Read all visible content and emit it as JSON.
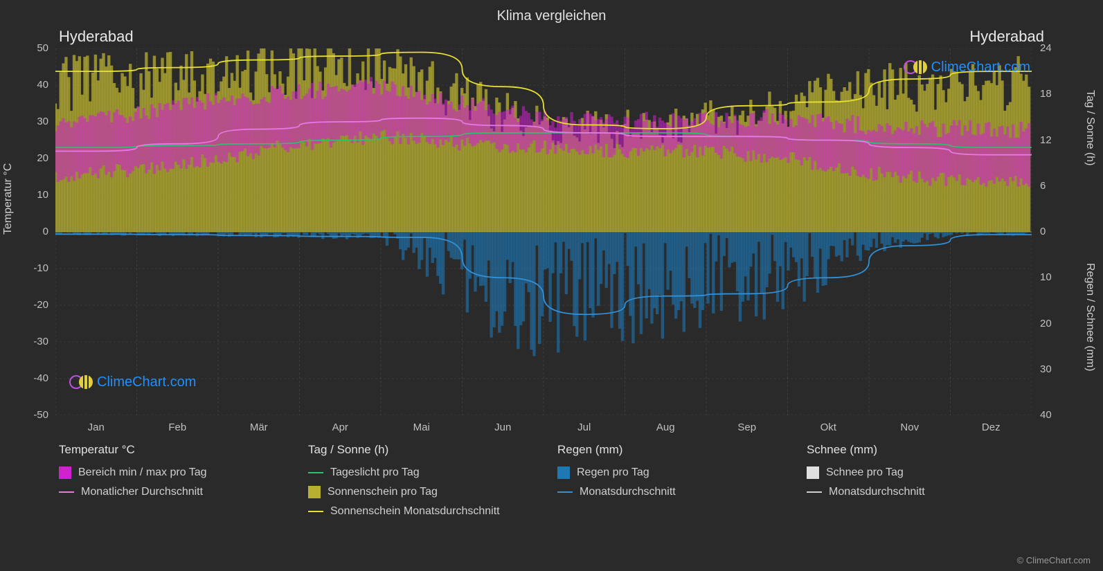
{
  "title": "Klima vergleichen",
  "location_left": "Hyderabad",
  "location_right": "Hyderabad",
  "axis_left_label": "Temperatur °C",
  "axis_right_label_top": "Tag / Sonne (h)",
  "axis_right_label_bottom": "Regen / Schnee (mm)",
  "copyright": "© ClimeChart.com",
  "watermark_text": "ClimeChart.com",
  "chart": {
    "type": "climate-multi-axis",
    "background_color": "#2a2a2a",
    "grid_color": "#707070",
    "grid_dash": "3,3",
    "font_family": "Arial",
    "months": [
      "Jan",
      "Feb",
      "Mär",
      "Apr",
      "Mai",
      "Jun",
      "Jul",
      "Aug",
      "Sep",
      "Okt",
      "Nov",
      "Dez"
    ],
    "y_left": {
      "min": -50,
      "max": 50,
      "step": 10,
      "label_fontsize": 15
    },
    "y_right_top": {
      "min": 0,
      "max": 24,
      "step": 6,
      "label_fontsize": 15
    },
    "y_right_bottom": {
      "min": 0,
      "max": 40,
      "step": 10,
      "label_fontsize": 15,
      "inverted": true
    },
    "colors": {
      "temp_range_fill": "#d020d0",
      "temp_avg_line": "#e878e8",
      "daylight_line": "#30c070",
      "sunshine_fill": "#b8b030",
      "sunshine_avg_line": "#e8e030",
      "rain_fill": "#1e78b4",
      "rain_avg_line": "#3090d8",
      "snow_fill": "#e0e0e0",
      "snow_avg_line": "#d0d0d0"
    },
    "series": {
      "temp_min_monthly": [
        15,
        17,
        20,
        24,
        26,
        24,
        23,
        22,
        22,
        20,
        16,
        14
      ],
      "temp_max_monthly": [
        29,
        32,
        36,
        38,
        40,
        35,
        31,
        30,
        31,
        31,
        29,
        28
      ],
      "temp_avg_monthly": [
        22,
        24,
        28,
        30,
        31,
        29,
        27,
        26,
        26,
        25,
        23,
        21
      ],
      "daylight_hours": [
        23,
        23.5,
        24,
        25,
        26,
        27,
        27,
        27,
        26,
        25,
        24,
        23
      ],
      "sunshine_fill_h": [
        21,
        21.5,
        22,
        23,
        23.5,
        19,
        15,
        14.5,
        16,
        18,
        20,
        21
      ],
      "sunshine_avg_h": [
        21,
        21.5,
        22.5,
        23,
        23.5,
        19,
        14,
        13.5,
        16.5,
        17,
        20,
        21
      ],
      "rain_fill_mm": [
        0.4,
        0.5,
        0.6,
        0.8,
        1.0,
        10,
        18,
        14,
        13,
        10,
        3,
        0.5
      ],
      "rain_avg_mm": [
        0.5,
        0.6,
        0.8,
        1.0,
        1.2,
        10,
        18,
        14,
        13.5,
        10,
        3,
        0.6
      ],
      "snow_avg_mm": [
        0,
        0,
        0,
        0,
        0,
        0,
        0,
        0,
        0,
        0,
        0,
        0
      ]
    }
  },
  "legend": {
    "col1_header": "Temperatur °C",
    "col1_items": [
      {
        "kind": "box",
        "color": "#d020d0",
        "label": "Bereich min / max pro Tag"
      },
      {
        "kind": "line",
        "color": "#e878e8",
        "label": "Monatlicher Durchschnitt"
      }
    ],
    "col2_header": "Tag / Sonne (h)",
    "col2_items": [
      {
        "kind": "line",
        "color": "#30c070",
        "label": "Tageslicht pro Tag"
      },
      {
        "kind": "box",
        "color": "#b8b030",
        "label": "Sonnenschein pro Tag"
      },
      {
        "kind": "line",
        "color": "#e8e030",
        "label": "Sonnenschein Monatsdurchschnitt"
      }
    ],
    "col3_header": "Regen (mm)",
    "col3_items": [
      {
        "kind": "box",
        "color": "#1e78b4",
        "label": "Regen pro Tag"
      },
      {
        "kind": "line",
        "color": "#3090d8",
        "label": "Monatsdurchschnitt"
      }
    ],
    "col4_header": "Schnee (mm)",
    "col4_items": [
      {
        "kind": "box",
        "color": "#e0e0e0",
        "label": "Schnee pro Tag"
      },
      {
        "kind": "line",
        "color": "#d0d0d0",
        "label": "Monatsdurchschnitt"
      }
    ]
  }
}
